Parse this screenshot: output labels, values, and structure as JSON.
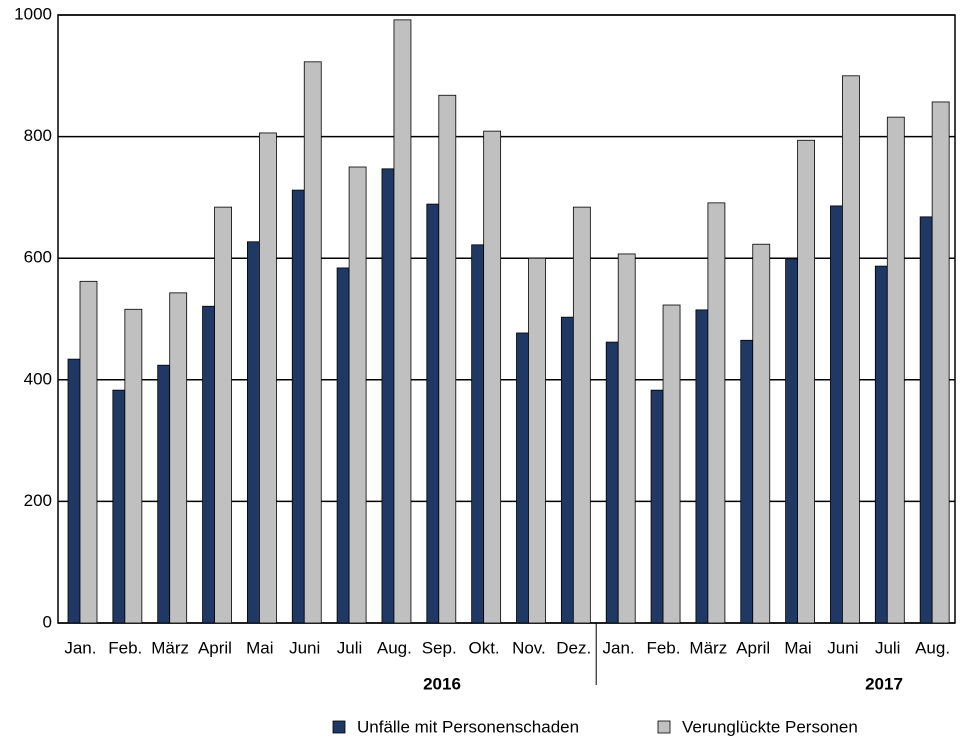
{
  "chart_data": {
    "type": "bar",
    "groups": [
      {
        "label": "2016",
        "categories": [
          "Jan.",
          "Feb.",
          "März",
          "April",
          "Mai",
          "Juni",
          "Juli",
          "Aug.",
          "Sep.",
          "Okt.",
          "Nov.",
          "Dez."
        ]
      },
      {
        "label": "2017",
        "categories": [
          "Jan.",
          "Feb.",
          "März",
          "April",
          "Mai",
          "Juni",
          "Juli",
          "Aug."
        ]
      }
    ],
    "series": [
      {
        "name": "Unfälle mit Personenschaden",
        "color": "#1f3864",
        "values": [
          434,
          383,
          424,
          521,
          627,
          712,
          584,
          747,
          689,
          622,
          477,
          503,
          462,
          383,
          515,
          465,
          599,
          686,
          587,
          668
        ]
      },
      {
        "name": "Verunglückte Personen",
        "color": "#c0c0c0",
        "values": [
          562,
          516,
          543,
          684,
          806,
          923,
          750,
          992,
          868,
          809,
          600,
          684,
          607,
          523,
          691,
          623,
          794,
          900,
          832,
          857
        ]
      }
    ],
    "ylim": [
      0,
      1000
    ],
    "yticks": [
      0,
      200,
      400,
      600,
      800,
      1000
    ],
    "grid": true
  }
}
